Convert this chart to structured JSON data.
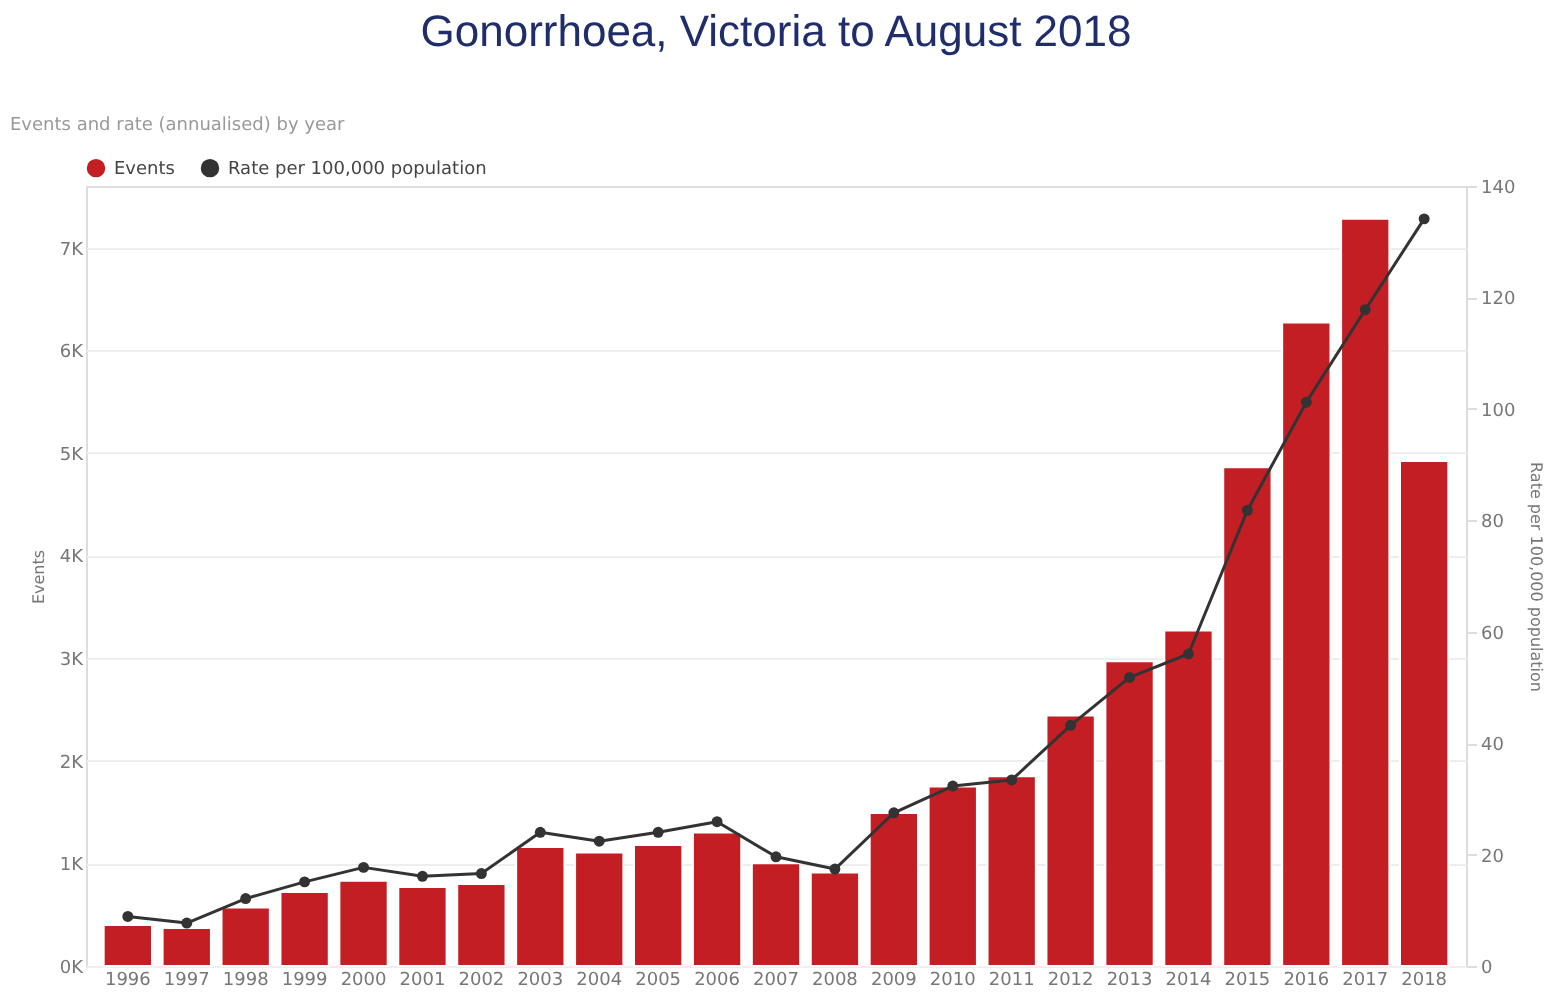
{
  "chart_data": {
    "type": "bar",
    "title": "Gonorrhoea, Victoria to August 2018",
    "subtitle": "Events and rate (annualised) by year",
    "ylabel": "Events",
    "y2label": "Rate per 100,000 population",
    "categories": [
      "1996",
      "1997",
      "1998",
      "1999",
      "2000",
      "2001",
      "2002",
      "2003",
      "2004",
      "2005",
      "2006",
      "2007",
      "2008",
      "2009",
      "2010",
      "2011",
      "2012",
      "2013",
      "2014",
      "2015",
      "2016",
      "2017",
      "2018"
    ],
    "series": [
      {
        "name": "Events",
        "color": "#c41e25",
        "values": [
          400,
          370,
          570,
          720,
          830,
          770,
          800,
          1160,
          1105,
          1180,
          1300,
          1000,
          910,
          1490,
          1750,
          1850,
          2440,
          2970,
          3270,
          4860,
          6270,
          7280,
          4920
        ]
      },
      {
        "name": "Rate per 100,000 population",
        "type": "line",
        "axis": "y2",
        "color": "#333333",
        "marker": "circle",
        "values": [
          8.9,
          7.7,
          12.1,
          15.1,
          17.7,
          16.1,
          16.6,
          24.0,
          22.4,
          24.0,
          25.9,
          19.6,
          17.4,
          27.5,
          32.3,
          33.4,
          43.2,
          51.8,
          56.0,
          81.8,
          101.2,
          117.8,
          134.1
        ]
      }
    ],
    "ylim": [
      0,
      7600
    ],
    "yticks": [
      {
        "value": 0,
        "label": "0K"
      },
      {
        "value": 1000,
        "label": "1K"
      },
      {
        "value": 2000,
        "label": "2K"
      },
      {
        "value": 3000,
        "label": "3K"
      },
      {
        "value": 4000,
        "label": "4K"
      },
      {
        "value": 5000,
        "label": "5K"
      },
      {
        "value": 6000,
        "label": "6K"
      },
      {
        "value": 7000,
        "label": "7K"
      }
    ],
    "y2lim": [
      0,
      140
    ],
    "y2ticks": [
      0,
      20,
      40,
      60,
      80,
      100,
      120,
      140
    ],
    "grid": "y",
    "legend": "top left"
  }
}
